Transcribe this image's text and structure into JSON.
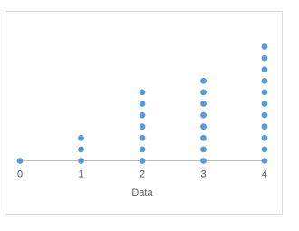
{
  "chart_data": {
    "type": "dot",
    "x_label": "Data",
    "values": [
      0,
      1,
      1,
      1,
      2,
      2,
      2,
      2,
      2,
      2,
      2,
      3,
      3,
      3,
      3,
      3,
      3,
      3,
      3,
      4,
      4,
      4,
      4,
      4,
      4,
      4,
      4,
      4,
      4,
      4
    ],
    "color": "#5b9bd5",
    "xlim": [
      0,
      4
    ],
    "xticks": [
      0,
      1,
      2,
      3,
      4
    ]
  }
}
